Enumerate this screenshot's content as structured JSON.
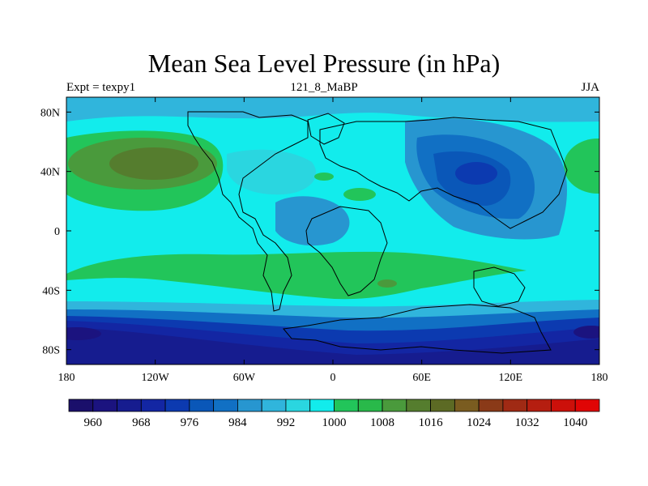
{
  "title": "Mean Sea Level Pressure (in hPa)",
  "left_label": "Expt = texpy1",
  "center_label": "121_8_MaBP",
  "right_label": "JJA",
  "lat_labels": [
    "80N",
    "40N",
    "0",
    "40S",
    "80S"
  ],
  "lat_values": [
    80,
    40,
    0,
    -40,
    -80
  ],
  "lon_labels": [
    "180",
    "120W",
    "60W",
    "0",
    "60E",
    "120E",
    "180"
  ],
  "lon_values": [
    -180,
    -120,
    -60,
    0,
    60,
    120,
    180
  ],
  "colorbar": {
    "levels": [
      960,
      964,
      968,
      972,
      976,
      980,
      984,
      988,
      992,
      996,
      1000,
      1004,
      1008,
      1012,
      1016,
      1020,
      1024,
      1028,
      1032,
      1036,
      1040
    ],
    "tick_labels": [
      "960",
      "968",
      "976",
      "984",
      "992",
      "1000",
      "1008",
      "1016",
      "1024",
      "1032",
      "1040"
    ],
    "colors": [
      "#1a0f6b",
      "#1b137f",
      "#161c8f",
      "#1326a3",
      "#0c3ab0",
      "#0a57b8",
      "#1170c4",
      "#2796d0",
      "#30b5dc",
      "#2ad6e0",
      "#12ecec",
      "#22c55a",
      "#29b94a",
      "#4a9a3c",
      "#557d2e",
      "#5c6a24",
      "#7a5c20",
      "#8a3a18",
      "#a02a14",
      "#b51e10",
      "#cc100a",
      "#e00505"
    ]
  }
}
